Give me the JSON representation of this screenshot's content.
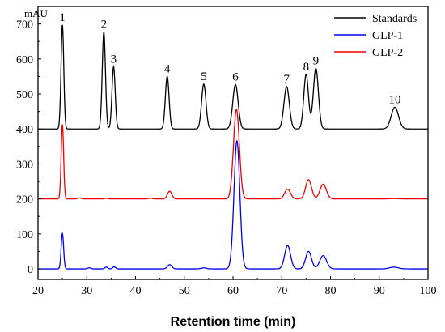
{
  "chart_data": {
    "type": "line",
    "title": "",
    "xlabel": "Retention time (min)",
    "ylabel": "",
    "y_unit": "mAU",
    "xlim": [
      20,
      100
    ],
    "ylim": [
      -30,
      750
    ],
    "x_ticks": [
      20,
      30,
      40,
      50,
      60,
      70,
      80,
      90,
      100
    ],
    "y_ticks": [
      0,
      100,
      200,
      300,
      400,
      500,
      600,
      700
    ],
    "legend_position": "top-right",
    "series": [
      {
        "name": "Standards",
        "color": "#000000",
        "baseline": 400,
        "peaks": [
          {
            "x": 25.0,
            "y": 697,
            "w": 0.28
          },
          {
            "x": 33.5,
            "y": 677,
            "w": 0.33
          },
          {
            "x": 35.5,
            "y": 578,
            "w": 0.33
          },
          {
            "x": 46.5,
            "y": 550,
            "w": 0.38
          },
          {
            "x": 54.0,
            "y": 528,
            "w": 0.45
          },
          {
            "x": 60.5,
            "y": 527,
            "w": 0.55
          },
          {
            "x": 71.0,
            "y": 521,
            "w": 0.55
          },
          {
            "x": 75.0,
            "y": 556,
            "w": 0.48
          },
          {
            "x": 77.0,
            "y": 573,
            "w": 0.52
          },
          {
            "x": 93.2,
            "y": 462,
            "w": 0.75
          }
        ]
      },
      {
        "name": "GLP-1",
        "color": "#0000ee",
        "baseline": 0,
        "peaks": [
          {
            "x": 25.0,
            "y": 101,
            "w": 0.25
          },
          {
            "x": 30.5,
            "y": 3,
            "w": 0.35
          },
          {
            "x": 34.0,
            "y": 5,
            "w": 0.3
          },
          {
            "x": 35.6,
            "y": 6,
            "w": 0.3
          },
          {
            "x": 47.0,
            "y": 12,
            "w": 0.45
          },
          {
            "x": 54.0,
            "y": 3,
            "w": 0.5
          },
          {
            "x": 60.8,
            "y": 366,
            "w": 0.6
          },
          {
            "x": 71.2,
            "y": 67,
            "w": 0.6
          },
          {
            "x": 75.5,
            "y": 50,
            "w": 0.6
          },
          {
            "x": 78.5,
            "y": 38,
            "w": 0.7
          },
          {
            "x": 93.0,
            "y": 5,
            "w": 0.9
          }
        ]
      },
      {
        "name": "GLP-2",
        "color": "#ee0000",
        "baseline": 200,
        "peaks": [
          {
            "x": 25.0,
            "y": 413,
            "w": 0.25
          },
          {
            "x": 28.5,
            "y": 203,
            "w": 0.35
          },
          {
            "x": 34.0,
            "y": 202,
            "w": 0.3
          },
          {
            "x": 43.0,
            "y": 202,
            "w": 0.4
          },
          {
            "x": 47.0,
            "y": 222,
            "w": 0.45
          },
          {
            "x": 60.7,
            "y": 456,
            "w": 0.6
          },
          {
            "x": 71.2,
            "y": 228,
            "w": 0.6
          },
          {
            "x": 75.5,
            "y": 255,
            "w": 0.6
          },
          {
            "x": 78.5,
            "y": 242,
            "w": 0.65
          },
          {
            "x": 93.0,
            "y": 201,
            "w": 0.9
          }
        ]
      }
    ],
    "peak_labels": [
      {
        "label": "1",
        "x": 25.0,
        "y": 697
      },
      {
        "label": "2",
        "x": 33.5,
        "y": 677
      },
      {
        "label": "3",
        "x": 35.5,
        "y": 578
      },
      {
        "label": "4",
        "x": 46.5,
        "y": 550
      },
      {
        "label": "5",
        "x": 54.0,
        "y": 528
      },
      {
        "label": "6",
        "x": 60.5,
        "y": 527
      },
      {
        "label": "7",
        "x": 71.0,
        "y": 521
      },
      {
        "label": "8",
        "x": 75.0,
        "y": 556
      },
      {
        "label": "9",
        "x": 77.0,
        "y": 573
      },
      {
        "label": "10",
        "x": 93.2,
        "y": 462
      }
    ]
  }
}
